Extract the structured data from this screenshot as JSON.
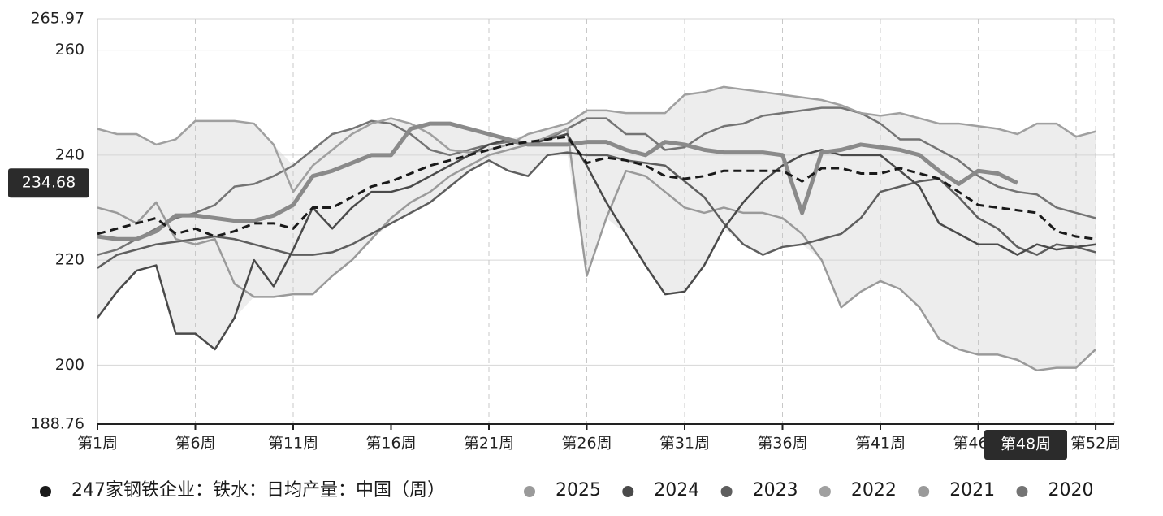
{
  "chart_data": {
    "type": "line",
    "ylim": [
      188.76,
      265.97
    ],
    "yticks": [
      188.76,
      200,
      220,
      240,
      260,
      265.97
    ],
    "grid": true,
    "band": true,
    "categories": [
      "第1周",
      null,
      null,
      null,
      null,
      "第6周",
      null,
      null,
      null,
      null,
      "第11周",
      null,
      null,
      null,
      null,
      "第16周",
      null,
      null,
      null,
      null,
      "第21周",
      null,
      null,
      null,
      null,
      "第26周",
      null,
      null,
      null,
      null,
      "第31周",
      null,
      null,
      null,
      null,
      "第36周",
      null,
      null,
      null,
      null,
      "第41周",
      null,
      null,
      null,
      null,
      "第46周",
      null,
      null,
      null,
      null,
      null,
      "第52周"
    ],
    "crosshair": {
      "x": "第48周",
      "y": 234.68
    },
    "series": [
      {
        "name": "247家钢铁企业：铁水：日均产量：中国（周）",
        "color": "#1a1a1a",
        "dash": true,
        "width": 3,
        "values": [
          225,
          226,
          227,
          228,
          225,
          226,
          224.5,
          225.5,
          227,
          227,
          226,
          230,
          230,
          232,
          234,
          235,
          236.5,
          238,
          239,
          240,
          241,
          242,
          242.5,
          243,
          243.5,
          238.5,
          239.5,
          239,
          238,
          236,
          235.5,
          236,
          237,
          237,
          237,
          237,
          235,
          237.5,
          237.5,
          236.5,
          236.5,
          237.5,
          236.5,
          235.5,
          233,
          230.5,
          230,
          229.5,
          229,
          225.5,
          224.5,
          224
        ]
      },
      {
        "name": "2025",
        "color": "#8a8a8a",
        "width": 5,
        "values": [
          224.5,
          224,
          224,
          225.5,
          228.5,
          228.5,
          228,
          227.5,
          227.5,
          228.5,
          230.5,
          236,
          237,
          238.5,
          240,
          240,
          245,
          246,
          246,
          245,
          244,
          243,
          242,
          242,
          242,
          242.5,
          242.5,
          241,
          240,
          242.5,
          242,
          241,
          240.5,
          240.5,
          240.5,
          240,
          229,
          240.5,
          241,
          242,
          241.5,
          241,
          240,
          237,
          234.5,
          237,
          236.5,
          234.68,
          null,
          null,
          null,
          null
        ]
      },
      {
        "name": "2024",
        "color": "#4a4a4a",
        "width": 2.5,
        "values": [
          209,
          214,
          218,
          219,
          206,
          206,
          203,
          209,
          220,
          215,
          222,
          230,
          226,
          230,
          233,
          233,
          234,
          236,
          238,
          240,
          242,
          243,
          242,
          243,
          244,
          238,
          231,
          225,
          219,
          213.5,
          214,
          219,
          226,
          231,
          235,
          238,
          240,
          241,
          240,
          240,
          240,
          237,
          234,
          227,
          225,
          223,
          223,
          221,
          223,
          222,
          222.5,
          223
        ]
      },
      {
        "name": "2023",
        "color": "#5e5e5e",
        "width": 2.5,
        "values": [
          218.5,
          221,
          222,
          223,
          223.5,
          224,
          224.5,
          224,
          223,
          222,
          221,
          221,
          221.5,
          223,
          225,
          227,
          229,
          231,
          234,
          237,
          239,
          237,
          236,
          240,
          240.5,
          240,
          240,
          239,
          238.5,
          238,
          235,
          232,
          227,
          223,
          221,
          222.5,
          223,
          224,
          225,
          228,
          233,
          234,
          235,
          235.5,
          232,
          228,
          226,
          222.5,
          221,
          223,
          222.5,
          221.5
        ]
      },
      {
        "name": "2022",
        "color": "#a0a0a0",
        "width": 2.5,
        "values": [
          245,
          244,
          244,
          242,
          243,
          246.5,
          246.5,
          246.5,
          246,
          242,
          233,
          238,
          241,
          244,
          246,
          247,
          246,
          244,
          241,
          240.5,
          241,
          242,
          244,
          245,
          246,
          248.5,
          248.5,
          248,
          248,
          248,
          251.5,
          252,
          253,
          252.5,
          252,
          251.5,
          251,
          250.5,
          249.5,
          248,
          247.5,
          248,
          247,
          246,
          246,
          245.5,
          245,
          244,
          246,
          246,
          243.5,
          244.5
        ]
      },
      {
        "name": "2021",
        "color": "#9a9a9a",
        "width": 2.5,
        "values": [
          230,
          229,
          227,
          231,
          224,
          223,
          224,
          215.5,
          213,
          213,
          213.5,
          213.5,
          217,
          220,
          224,
          228,
          231,
          233,
          236,
          238,
          240,
          241,
          242,
          243.5,
          245,
          217,
          228,
          237,
          236,
          233,
          230,
          229,
          230,
          229,
          229,
          228,
          225,
          220,
          211,
          214,
          216,
          214.5,
          211,
          205,
          203,
          202,
          202,
          201,
          199,
          199.5,
          199.5,
          203
        ]
      },
      {
        "name": "2020",
        "color": "#747474",
        "width": 2.5,
        "values": [
          221,
          222,
          224,
          226,
          228,
          229,
          230.5,
          234,
          234.5,
          236,
          238,
          241,
          244,
          245,
          246.5,
          246,
          244,
          241,
          240,
          241,
          242,
          242.5,
          242,
          243,
          245,
          247,
          247,
          244,
          244,
          241,
          241.5,
          244,
          245.5,
          246,
          247.5,
          248,
          248.5,
          249,
          249,
          248,
          246,
          243,
          243,
          241,
          239,
          236,
          234,
          233,
          232.5,
          230,
          229,
          228
        ]
      }
    ]
  }
}
